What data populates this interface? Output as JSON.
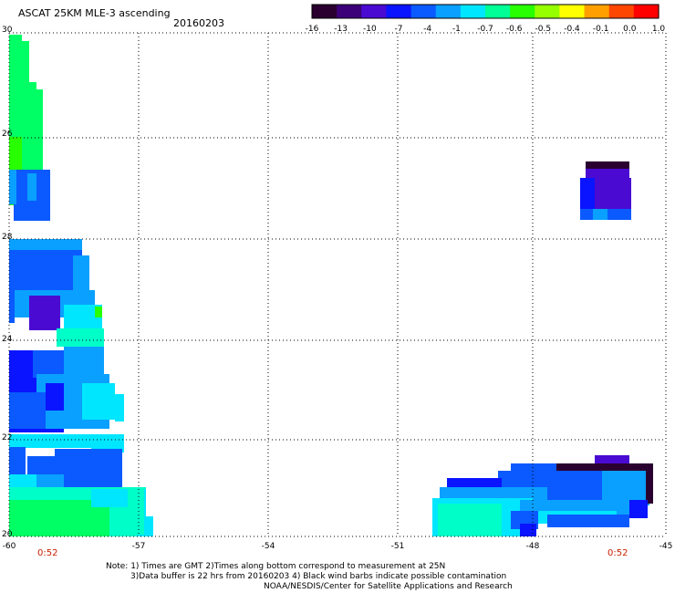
{
  "header": {
    "title": "ASCAT 25KM MLE-3 ascending",
    "date": "20160203"
  },
  "colorbar": {
    "labels": [
      "-16",
      "-13",
      "-10",
      "-7",
      "-4",
      "-1",
      "-0.7",
      "-0.6",
      "-0.5",
      "-0.4",
      "-0.1",
      "0.0",
      "1.0"
    ],
    "colors": [
      "#2a0030",
      "#3c0078",
      "#4a0ad2",
      "#0a14ff",
      "#0a5aff",
      "#0aa0ff",
      "#00e6ff",
      "#00ff96",
      "#28ff00",
      "#96ff00",
      "#ffff00",
      "#ffa000",
      "#ff4600",
      "#ff0000"
    ]
  },
  "map": {
    "lon_range": [
      -60,
      -45
    ],
    "lat_range": [
      20,
      30
    ],
    "x_ticks": [
      "-60",
      "-57",
      "-54",
      "-51",
      "-48",
      "-45"
    ],
    "y_ticks": [
      "30",
      "28",
      "26",
      "24",
      "22",
      "20"
    ],
    "times": [
      "0:52",
      "0:52"
    ]
  },
  "notes": {
    "line1": "Note: 1) Times are GMT 2)Times along bottom correspond to measurement at 25N",
    "line2": "3)Data buffer is 22 hrs from 20160203 4) Black wind barbs indicate possible contamination",
    "line3": "NOAA/NESDIS/Center for Satellite Applications and Research"
  }
}
